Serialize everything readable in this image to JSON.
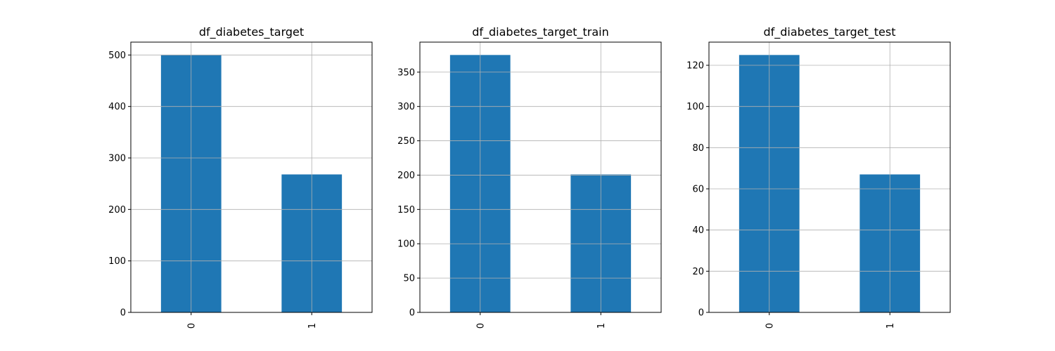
{
  "figure": {
    "bar_color": "#1f77b4",
    "grid": true
  },
  "chart_data": [
    {
      "type": "bar",
      "title": "df_diabetes_target",
      "categories": [
        "0",
        "1"
      ],
      "values": [
        500,
        268
      ],
      "ylim": [
        0,
        525
      ],
      "yticks": [
        0,
        100,
        200,
        300,
        400,
        500
      ]
    },
    {
      "type": "bar",
      "title": "df_diabetes_target_train",
      "categories": [
        "0",
        "1"
      ],
      "values": [
        375,
        201
      ],
      "ylim": [
        0,
        393.75
      ],
      "yticks": [
        0,
        50,
        100,
        150,
        200,
        250,
        300,
        350
      ]
    },
    {
      "type": "bar",
      "title": "df_diabetes_target_test",
      "categories": [
        "0",
        "1"
      ],
      "values": [
        125,
        67
      ],
      "ylim": [
        0,
        131.25
      ],
      "yticks": [
        0,
        20,
        40,
        60,
        80,
        100,
        120
      ]
    }
  ]
}
